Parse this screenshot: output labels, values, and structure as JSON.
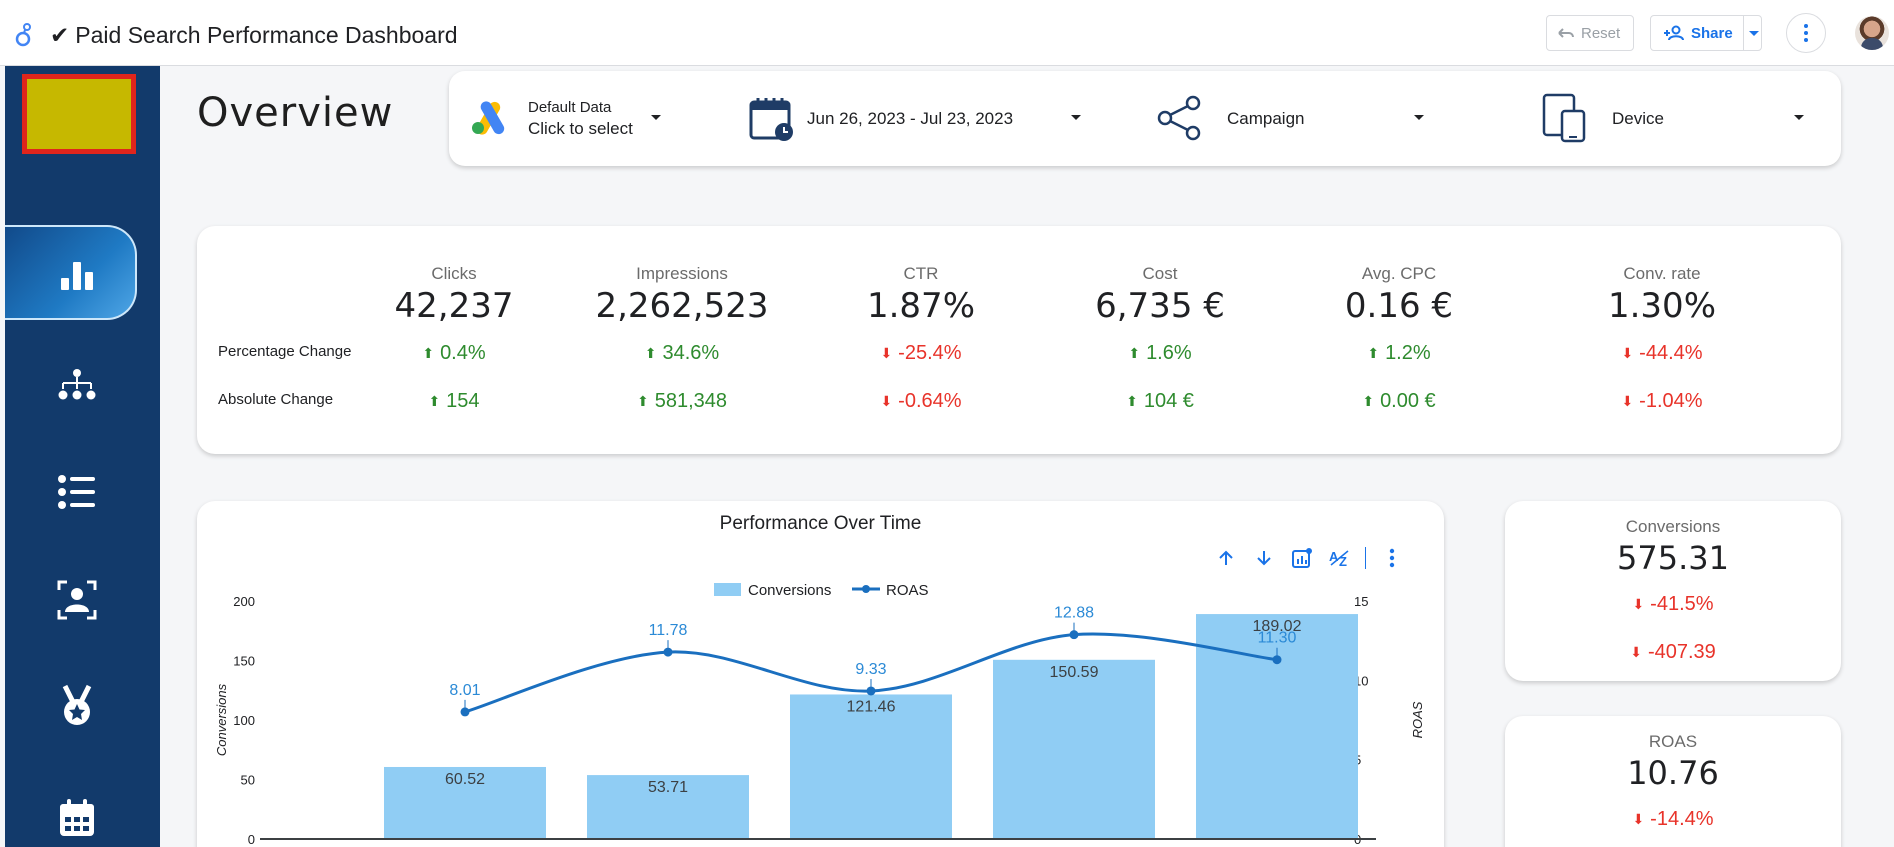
{
  "header": {
    "title": "Paid Search Performance Dashboard",
    "reset_label": "Reset",
    "share_label": "Share"
  },
  "colors": {
    "sidebar": "#123a6b",
    "bar": "#90cdf4",
    "line": "#1a6fbf",
    "positive": "#2e8b2e",
    "negative": "#e8332a",
    "accent": "#1a73e8"
  },
  "sidebar": {
    "items": [
      {
        "icon": "bar-chart-icon",
        "active": true
      },
      {
        "icon": "hierarchy-icon",
        "active": false
      },
      {
        "icon": "list-icon",
        "active": false
      },
      {
        "icon": "user-focus-icon",
        "active": false
      },
      {
        "icon": "medal-icon",
        "active": false
      },
      {
        "icon": "calendar-icon",
        "active": false
      }
    ]
  },
  "page": {
    "title": "Overview"
  },
  "filters": {
    "datasource_line1": "Default Data",
    "datasource_line2": "Click to select",
    "date_range": "Jun 26, 2023 - Jul 23, 2023",
    "campaign": "Campaign",
    "device": "Device"
  },
  "kpis": {
    "row_labels": [
      "Percentage Change",
      "Absolute Change"
    ],
    "metrics": [
      {
        "name": "Clicks",
        "value": "42,237",
        "pct": "0.4%",
        "pct_dir": "up",
        "abs": "154",
        "abs_dir": "up"
      },
      {
        "name": "Impressions",
        "value": "2,262,523",
        "pct": "34.6%",
        "pct_dir": "up",
        "abs": "581,348",
        "abs_dir": "up"
      },
      {
        "name": "CTR",
        "value": "1.87%",
        "pct": "-25.4%",
        "pct_dir": "down",
        "abs": "-0.64%",
        "abs_dir": "down"
      },
      {
        "name": "Cost",
        "value": "6,735 €",
        "pct": "1.6%",
        "pct_dir": "up",
        "abs": "104 €",
        "abs_dir": "up"
      },
      {
        "name": "Avg. CPC",
        "value": "0.16 €",
        "pct": "1.2%",
        "pct_dir": "up",
        "abs": "0.00 €",
        "abs_dir": "up"
      },
      {
        "name": "Conv. rate",
        "value": "1.30%",
        "pct": "-44.4%",
        "pct_dir": "down",
        "abs": "-1.04%",
        "abs_dir": "down"
      }
    ]
  },
  "chart_data": {
    "type": "bar",
    "title": "Performance Over Time",
    "ylabel": "Conversions",
    "y2label": "ROAS",
    "ylim": [
      0,
      200
    ],
    "y2lim": [
      0,
      15
    ],
    "yticks": [
      0,
      50,
      100,
      150,
      200
    ],
    "y2ticks": [
      0,
      5,
      10,
      15
    ],
    "legend_position": "top-center",
    "series": [
      {
        "name": "Conversions",
        "type": "bar",
        "axis": "left",
        "values": [
          60.52,
          53.71,
          121.46,
          150.59,
          189.02
        ]
      },
      {
        "name": "ROAS",
        "type": "line",
        "axis": "right",
        "values": [
          8.01,
          11.78,
          9.33,
          12.88,
          11.3
        ]
      }
    ],
    "bar_labels": [
      "60.52",
      "53.71",
      "121.46",
      "150.59",
      "189.02"
    ],
    "line_labels": [
      "8.01",
      "11.78",
      "9.33",
      "12.88",
      "11.30"
    ]
  },
  "side_cards": {
    "conversions": {
      "name": "Conversions",
      "value": "575.31",
      "pct": "-41.5%",
      "abs": "-407.39"
    },
    "roas": {
      "name": "ROAS",
      "value": "10.76",
      "pct": "-14.4%"
    }
  }
}
